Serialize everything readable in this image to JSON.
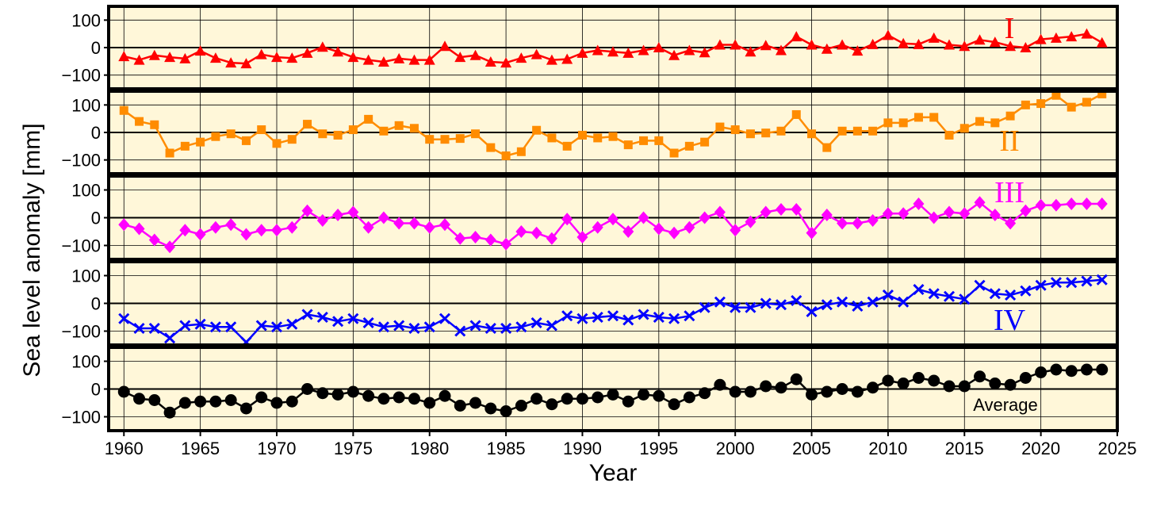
{
  "chart_data": {
    "type": "line",
    "title": "",
    "xlabel": "Year",
    "ylabel": "Sea level anomaly [mm]",
    "xlim": [
      1959,
      2025
    ],
    "ylim": [
      -150,
      150
    ],
    "x_ticks": [
      1960,
      1965,
      1970,
      1975,
      1980,
      1985,
      1990,
      1995,
      2000,
      2005,
      2010,
      2015,
      2020,
      2025
    ],
    "y_ticks": [
      100,
      0,
      -100
    ],
    "y_tick_labels": [
      "100",
      "0",
      "−100"
    ],
    "grid": true,
    "x": [
      1960,
      1961,
      1962,
      1963,
      1964,
      1965,
      1966,
      1967,
      1968,
      1969,
      1970,
      1971,
      1972,
      1973,
      1974,
      1975,
      1976,
      1977,
      1978,
      1979,
      1980,
      1981,
      1982,
      1983,
      1984,
      1985,
      1986,
      1987,
      1988,
      1989,
      1990,
      1991,
      1992,
      1993,
      1994,
      1995,
      1996,
      1997,
      1998,
      1999,
      2000,
      2001,
      2002,
      2003,
      2004,
      2005,
      2006,
      2007,
      2008,
      2009,
      2010,
      2011,
      2012,
      2013,
      2014,
      2015,
      2016,
      2017,
      2018,
      2019,
      2020,
      2021,
      2022,
      2023,
      2024
    ],
    "series": [
      {
        "name": "I",
        "label_font": "serif",
        "color": "#ff0000",
        "marker": "triangle",
        "values": [
          -32,
          -45,
          -28,
          -35,
          -40,
          -12,
          -38,
          -55,
          -58,
          -25,
          -35,
          -38,
          -20,
          2,
          -15,
          -35,
          -45,
          -52,
          -40,
          -45,
          -45,
          5,
          -35,
          -28,
          -52,
          -55,
          -38,
          -25,
          -45,
          -42,
          -20,
          -10,
          -15,
          -20,
          -10,
          0,
          -28,
          -10,
          -18,
          10,
          10,
          -15,
          8,
          -10,
          40,
          10,
          -5,
          10,
          -12,
          12,
          45,
          15,
          12,
          35,
          10,
          5,
          28,
          20,
          5,
          0,
          30,
          35,
          40,
          50,
          18
        ]
      },
      {
        "name": "II",
        "label_font": "serif",
        "color": "#ff8c00",
        "marker": "square",
        "values": [
          80,
          40,
          28,
          -75,
          -50,
          -35,
          -15,
          -5,
          -30,
          10,
          -40,
          -25,
          30,
          -5,
          -10,
          10,
          48,
          5,
          25,
          15,
          -25,
          -25,
          -22,
          -5,
          -55,
          -85,
          -70,
          8,
          -20,
          -50,
          -10,
          -20,
          -15,
          -45,
          -30,
          -30,
          -75,
          -50,
          -35,
          20,
          10,
          -5,
          -2,
          5,
          65,
          -5,
          -55,
          5,
          5,
          5,
          35,
          35,
          55,
          55,
          -10,
          15,
          40,
          35,
          60,
          100,
          105,
          135,
          92,
          110,
          140
        ]
      },
      {
        "name": "III",
        "label_font": "serif",
        "color": "#ff00ff",
        "marker": "diamond",
        "values": [
          -25,
          -40,
          -80,
          -105,
          -45,
          -60,
          -35,
          -25,
          -60,
          -45,
          -45,
          -35,
          25,
          -10,
          10,
          20,
          -35,
          0,
          -20,
          -20,
          -35,
          -25,
          -75,
          -70,
          -80,
          -95,
          -50,
          -55,
          -75,
          -5,
          -70,
          -35,
          -5,
          -50,
          0,
          -40,
          -55,
          -35,
          0,
          20,
          -45,
          -15,
          20,
          30,
          30,
          -55,
          10,
          -20,
          -20,
          -10,
          15,
          15,
          50,
          0,
          20,
          15,
          55,
          10,
          -20,
          25,
          45,
          45,
          50,
          50,
          50
        ]
      },
      {
        "name": "IV",
        "label_font": "serif",
        "color": "#0000ff",
        "marker": "x",
        "values": [
          -55,
          -90,
          -90,
          -125,
          -80,
          -75,
          -85,
          -85,
          -140,
          -80,
          -85,
          -75,
          -40,
          -50,
          -65,
          -55,
          -70,
          -85,
          -80,
          -90,
          -85,
          -55,
          -100,
          -80,
          -90,
          -90,
          -85,
          -70,
          -80,
          -45,
          -55,
          -50,
          -45,
          -60,
          -40,
          -50,
          -55,
          -45,
          -15,
          5,
          -15,
          -15,
          0,
          -5,
          10,
          -30,
          -5,
          5,
          -10,
          5,
          30,
          5,
          50,
          35,
          25,
          15,
          65,
          35,
          30,
          45,
          65,
          75,
          75,
          80,
          85
        ]
      },
      {
        "name": "Average",
        "label_font": "sans",
        "color": "#000000",
        "marker": "circle",
        "values": [
          -10,
          -35,
          -40,
          -85,
          -50,
          -45,
          -45,
          -40,
          -70,
          -30,
          -50,
          -45,
          0,
          -15,
          -20,
          -10,
          -25,
          -35,
          -30,
          -35,
          -50,
          -25,
          -60,
          -50,
          -70,
          -80,
          -60,
          -35,
          -55,
          -35,
          -35,
          -30,
          -20,
          -45,
          -20,
          -25,
          -55,
          -30,
          -15,
          15,
          -10,
          -10,
          10,
          5,
          35,
          -20,
          -10,
          0,
          -10,
          5,
          30,
          20,
          40,
          30,
          10,
          10,
          45,
          20,
          15,
          40,
          60,
          70,
          65,
          70,
          70
        ]
      }
    ]
  }
}
